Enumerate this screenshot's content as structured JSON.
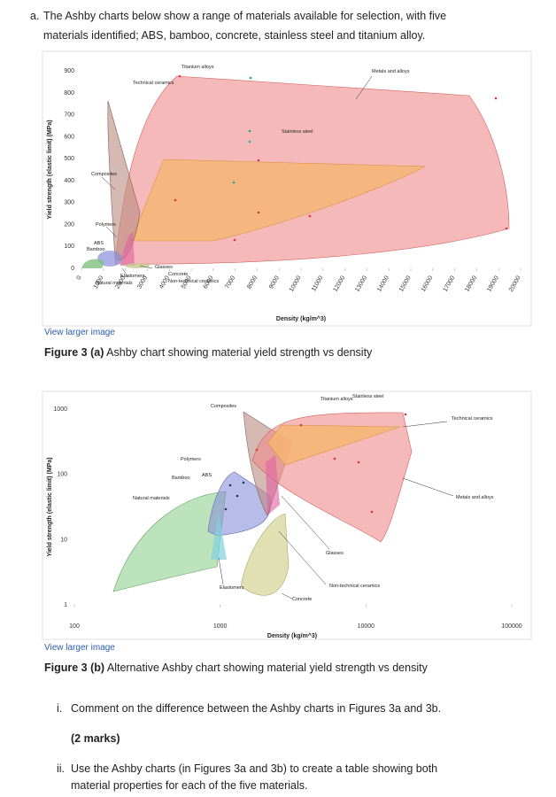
{
  "question": {
    "label": "a.",
    "text": "The Ashby charts below show a range of materials available for selection, with five materials identified; ABS, bamboo, concrete, stainless steel and titanium alloy."
  },
  "figures": [
    {
      "link": "View larger image",
      "caption_label": "Figure 3 (a)",
      "caption": "Ashby chart showing material yield strength vs density",
      "x_label": "Density (kg/m^3)",
      "y_label": "Yield strength (elastic limit) (MPa)",
      "xticks": [
        0,
        1000,
        2000,
        3000,
        4000,
        5000,
        6000,
        7000,
        8000,
        9000,
        10000,
        11000,
        12000,
        13000,
        14000,
        15000,
        16000,
        17000,
        18000,
        19000,
        20000
      ],
      "yticks": [
        0,
        100,
        200,
        300,
        400,
        500,
        600,
        700,
        800,
        900
      ],
      "region_labels": [
        "Titanium alloys",
        "Technical ceramics",
        "Metals and alloys",
        "Stainless steel",
        "Composites",
        "Polymers",
        "ABS",
        "Bamboo",
        "Glasses",
        "Concrete",
        "Elastomers",
        "Natural materials",
        "Non-technical ceramics"
      ]
    },
    {
      "link": "View larger image",
      "caption_label": "Figure 3 (b)",
      "caption": "Alternative Ashby chart showing material yield strength vs density",
      "x_label": "Density (kg/m^3)",
      "y_label": "Yield strength (elastic limit) (MPa)",
      "log_scale": true,
      "xticks": [
        100,
        1000,
        10000,
        100000
      ],
      "yticks": [
        1,
        10,
        100,
        1000
      ],
      "region_labels": [
        "Titanium alloys",
        "Stainless steel",
        "Technical ceramics",
        "Metals and alloys",
        "Composites",
        "Polymers",
        "ABS",
        "Bamboo",
        "Natural materials",
        "Glasses",
        "Non-technical ceramics",
        "Concrete",
        "Elastomers"
      ]
    }
  ],
  "parts": [
    {
      "label": "i.",
      "text": "Comment on the difference between the Ashby charts in Figures 3a and 3b.",
      "marks": "(2 marks)"
    },
    {
      "label": "ii.",
      "text": "Use the Ashby charts (in Figures 3a and 3b) to create a table showing both material properties for each of the five materials."
    }
  ]
}
